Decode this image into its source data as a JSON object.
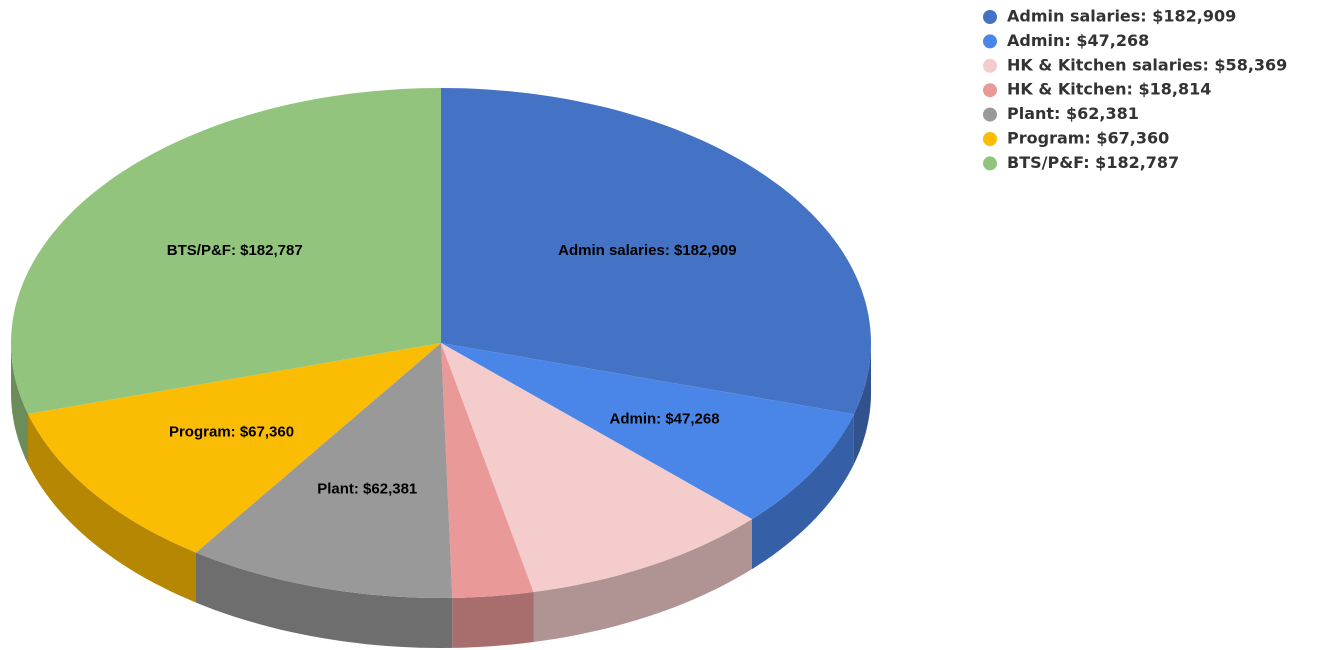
{
  "chart_data": {
    "type": "pie3d",
    "categories": [
      "Admin salaries: $182,909",
      "Admin: $47,268",
      "HK & Kitchen salaries: $58,369",
      "HK & Kitchen: $18,814",
      "Plant: $62,381",
      "Program: $67,360",
      "BTS/P&F: $182,787"
    ],
    "values": [
      182909,
      47268,
      58369,
      18814,
      62381,
      67360,
      182787
    ],
    "value_labels": [
      "Admin salaries: $182,909",
      "Admin: $47,268",
      null,
      null,
      "Plant: $62,381",
      "Program: $67,360",
      "BTS/P&F: $182,787"
    ],
    "colors": [
      "#4472c4",
      "#4a86e8",
      "#f4cccc",
      "#ea9999",
      "#999999",
      "#fbbc04",
      "#93c47d"
    ],
    "legend": "top-right"
  }
}
